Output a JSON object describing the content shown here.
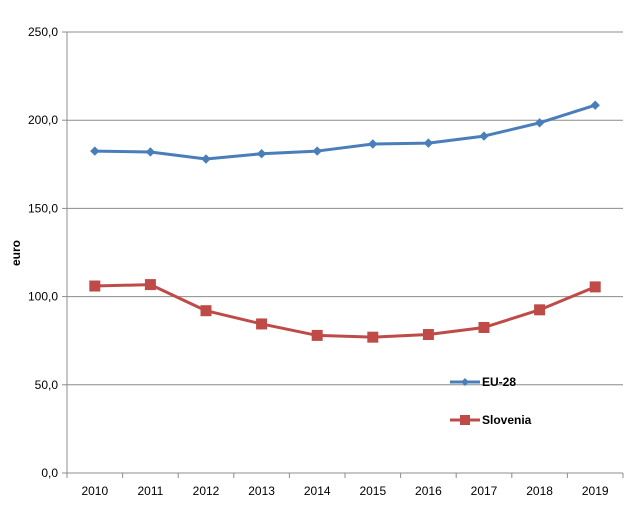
{
  "chart_data": {
    "type": "line",
    "categories": [
      "2010",
      "2011",
      "2012",
      "2013",
      "2014",
      "2015",
      "2016",
      "2017",
      "2018",
      "2019"
    ],
    "ylabel": "euro",
    "ylim": [
      0,
      250
    ],
    "yticks": [
      0,
      50,
      100,
      150,
      200,
      250
    ],
    "ytick_labels": [
      "0,0",
      "50,0",
      "100,0",
      "150,0",
      "200,0",
      "250,0"
    ],
    "grid": true,
    "legend_position": "right",
    "series": [
      {
        "name": "EU-28",
        "color": "#4a7ebb",
        "marker": "diamond",
        "values": [
          182.5,
          182.0,
          178.0,
          181.0,
          182.5,
          186.5,
          187.0,
          191.0,
          198.5,
          208.5
        ]
      },
      {
        "name": "Slovenia",
        "color": "#be4b48",
        "marker": "square",
        "values": [
          106.0,
          106.8,
          92.0,
          84.5,
          78.0,
          77.0,
          78.5,
          82.5,
          92.5,
          105.5
        ]
      }
    ]
  }
}
